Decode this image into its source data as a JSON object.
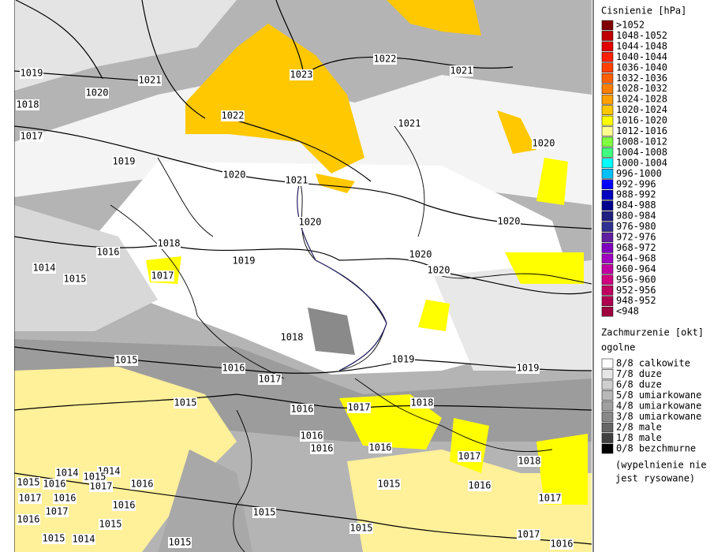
{
  "legend": {
    "pressure_title": "Cisnienie [hPa]",
    "pressure_classes": [
      {
        "label": ">1052",
        "color": "#800000"
      },
      {
        "label": "1048-1052",
        "color": "#c00000"
      },
      {
        "label": "1044-1048",
        "color": "#e00000"
      },
      {
        "label": "1040-1044",
        "color": "#ff2000"
      },
      {
        "label": "1036-1040",
        "color": "#ff4000"
      },
      {
        "label": "1032-1036",
        "color": "#ff6000"
      },
      {
        "label": "1028-1032",
        "color": "#ff8000"
      },
      {
        "label": "1024-1028",
        "color": "#ffa000"
      },
      {
        "label": "1020-1024",
        "color": "#ffc800"
      },
      {
        "label": "1016-1020",
        "color": "#ffff00"
      },
      {
        "label": "1012-1016",
        "color": "#ffff90"
      },
      {
        "label": "1008-1012",
        "color": "#80ff40"
      },
      {
        "label": "1004-1008",
        "color": "#40ff80"
      },
      {
        "label": "1000-1004",
        "color": "#00ffff"
      },
      {
        "label": "996-1000",
        "color": "#00c0ff"
      },
      {
        "label": "992-996",
        "color": "#0000ff"
      },
      {
        "label": "988-992",
        "color": "#0000c0"
      },
      {
        "label": "984-988",
        "color": "#000090"
      },
      {
        "label": "980-984",
        "color": "#202080"
      },
      {
        "label": "976-980",
        "color": "#303090"
      },
      {
        "label": "972-976",
        "color": "#6020a0"
      },
      {
        "label": "968-972",
        "color": "#8000c0"
      },
      {
        "label": "964-968",
        "color": "#a000c0"
      },
      {
        "label": "960-964",
        "color": "#c000a0"
      },
      {
        "label": "956-960",
        "color": "#d00080"
      },
      {
        "label": "952-956",
        "color": "#c00060"
      },
      {
        "label": "948-952",
        "color": "#b00050"
      },
      {
        "label": "<948",
        "color": "#a00040"
      }
    ],
    "cloud_title": "Zachmurzenie [okt]",
    "cloud_subtitle": "ogolne",
    "cloud_classes": [
      {
        "label": "8/8 calkowite",
        "color": "#ffffff"
      },
      {
        "label": "7/8 duze",
        "color": "#e6e6e6"
      },
      {
        "label": "6/8 duze",
        "color": "#cfcfcf"
      },
      {
        "label": "5/8 umiarkowane",
        "color": "#b8b8b8"
      },
      {
        "label": "4/8 umiarkowane",
        "color": "#a0a0a0"
      },
      {
        "label": "3/8 umiarkowane",
        "color": "#888888"
      },
      {
        "label": "2/8 male",
        "color": "#666666"
      },
      {
        "label": "1/8 male",
        "color": "#404040"
      },
      {
        "label": "0/8 bezchmurne",
        "color": "#000000"
      }
    ],
    "note": [
      "(wypelnienie nie",
      "jest rysowane)"
    ]
  },
  "isobar_labels": [
    "1023",
    "1022",
    "1021",
    "1021",
    "1019",
    "1020",
    "1018",
    "1022",
    "1021",
    "1017",
    "1019",
    "1020",
    "1020",
    "1021",
    "1020",
    "1020",
    "1016",
    "1018",
    "1019",
    "1020",
    "1020",
    "1014",
    "1015",
    "1017",
    "1018",
    "1019",
    "1019",
    "1015",
    "1016",
    "1017",
    "1015",
    "1016",
    "1017",
    "1018",
    "1016",
    "1016",
    "1016",
    "1017",
    "1018",
    "1015",
    "1016",
    "1017",
    "1015",
    "1016",
    "1017",
    "1016",
    "1017",
    "1016",
    "1016",
    "1016",
    "1017",
    "1015",
    "1015",
    "1015",
    "1015",
    "1015",
    "1014",
    "1017",
    "1016",
    "1014",
    "1014",
    "1015"
  ]
}
